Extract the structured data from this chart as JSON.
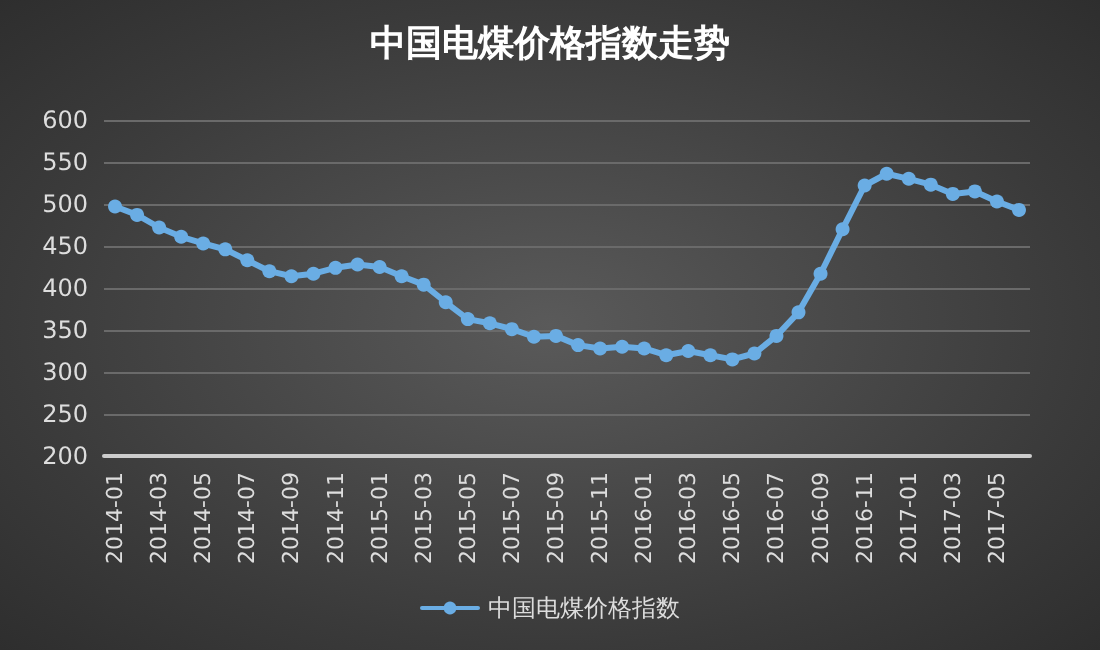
{
  "chart_data": {
    "type": "line",
    "title": "中国电煤价格指数走势",
    "categories": [
      "2014-01",
      null,
      "2014-03",
      null,
      "2014-05",
      null,
      "2014-07",
      null,
      "2014-09",
      null,
      "2014-11",
      null,
      "2015-01",
      null,
      "2015-03",
      null,
      "2015-05",
      null,
      "2015-07",
      null,
      "2015-09",
      null,
      "2015-11",
      null,
      "2016-01",
      null,
      "2016-03",
      null,
      "2016-05",
      null,
      "2016-07",
      null,
      "2016-09",
      null,
      "2016-11",
      null,
      "2017-01",
      null,
      "2017-03",
      null,
      "2017-05",
      null
    ],
    "series": [
      {
        "name": "中国电煤价格指数",
        "color": "#6aade4",
        "values": [
          497,
          487,
          472,
          461,
          453,
          446,
          433,
          420,
          414,
          417,
          424,
          428,
          425,
          414,
          404,
          383,
          363,
          358,
          351,
          342,
          343,
          332,
          328,
          330,
          328,
          320,
          325,
          320,
          315,
          322,
          343,
          371,
          417,
          470,
          522,
          536,
          530,
          523,
          512,
          515,
          503,
          493
        ]
      }
    ],
    "ylim": [
      200,
      600
    ],
    "yticks": [
      200,
      250,
      300,
      350,
      400,
      450,
      500,
      550,
      600
    ],
    "grid": "y",
    "legend": "bottom",
    "marker": "circle",
    "line_style": "solid"
  }
}
